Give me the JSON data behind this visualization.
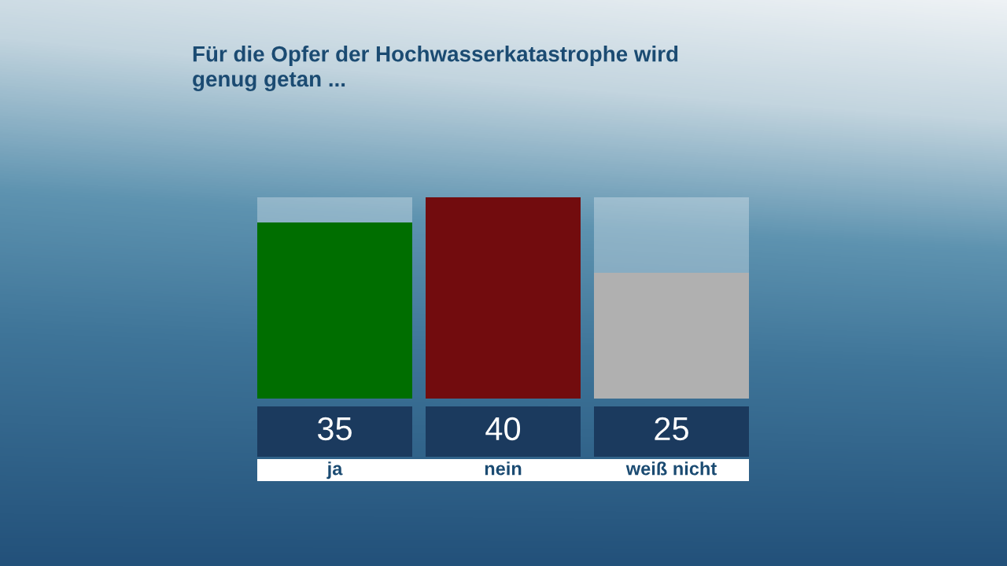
{
  "chart_data": {
    "type": "bar",
    "title": "Für die Opfer der Hochwasserkatastrophe wird\ngenug getan ...",
    "categories": [
      "ja",
      "nein",
      "weiß nicht"
    ],
    "values": [
      35,
      40,
      25
    ],
    "colors": [
      "#006e00",
      "#720c0e",
      "#b0b0b0"
    ],
    "data_labels": true
  }
}
